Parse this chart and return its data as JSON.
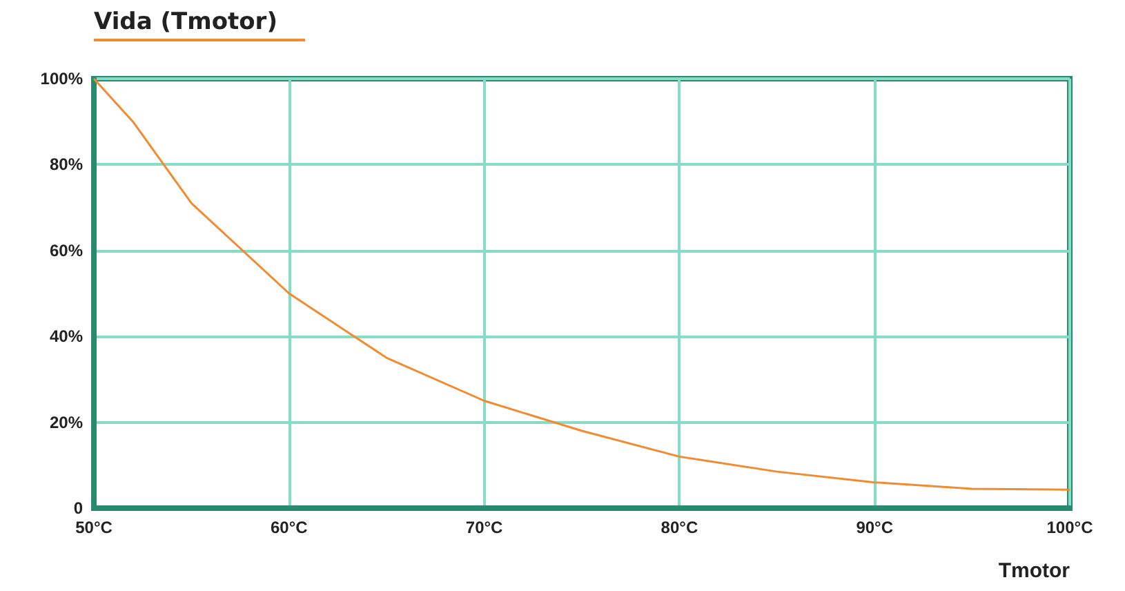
{
  "chart_data": {
    "type": "line",
    "title": "Vida (Tmotor)",
    "xlabel": "Tmotor",
    "x": [
      50,
      52,
      55,
      60,
      65,
      70,
      75,
      80,
      85,
      90,
      95,
      100
    ],
    "series": [
      {
        "color": "#f28a30",
        "values": [
          100,
          90,
          71,
          50,
          35,
          25,
          18,
          12,
          8.5,
          6,
          4.5,
          4.3
        ]
      }
    ],
    "xlim": [
      50,
      100
    ],
    "xticks": [
      {
        "value": 50,
        "label": "50°C"
      },
      {
        "value": 60,
        "label": "60°C"
      },
      {
        "value": 70,
        "label": "70°C"
      },
      {
        "value": 80,
        "label": "80°C"
      },
      {
        "value": 90,
        "label": "90°C"
      },
      {
        "value": 100,
        "label": "100°C"
      }
    ],
    "ylim": [
      0,
      100
    ],
    "yticks": [
      {
        "value": 0,
        "label": "0"
      },
      {
        "value": 20,
        "label": "20%"
      },
      {
        "value": 40,
        "label": "40%"
      },
      {
        "value": 60,
        "label": "60%"
      },
      {
        "value": 80,
        "label": "80%"
      },
      {
        "value": 100,
        "label": "100%"
      }
    ],
    "grid": true,
    "marker": "none",
    "line_style": "solid"
  }
}
